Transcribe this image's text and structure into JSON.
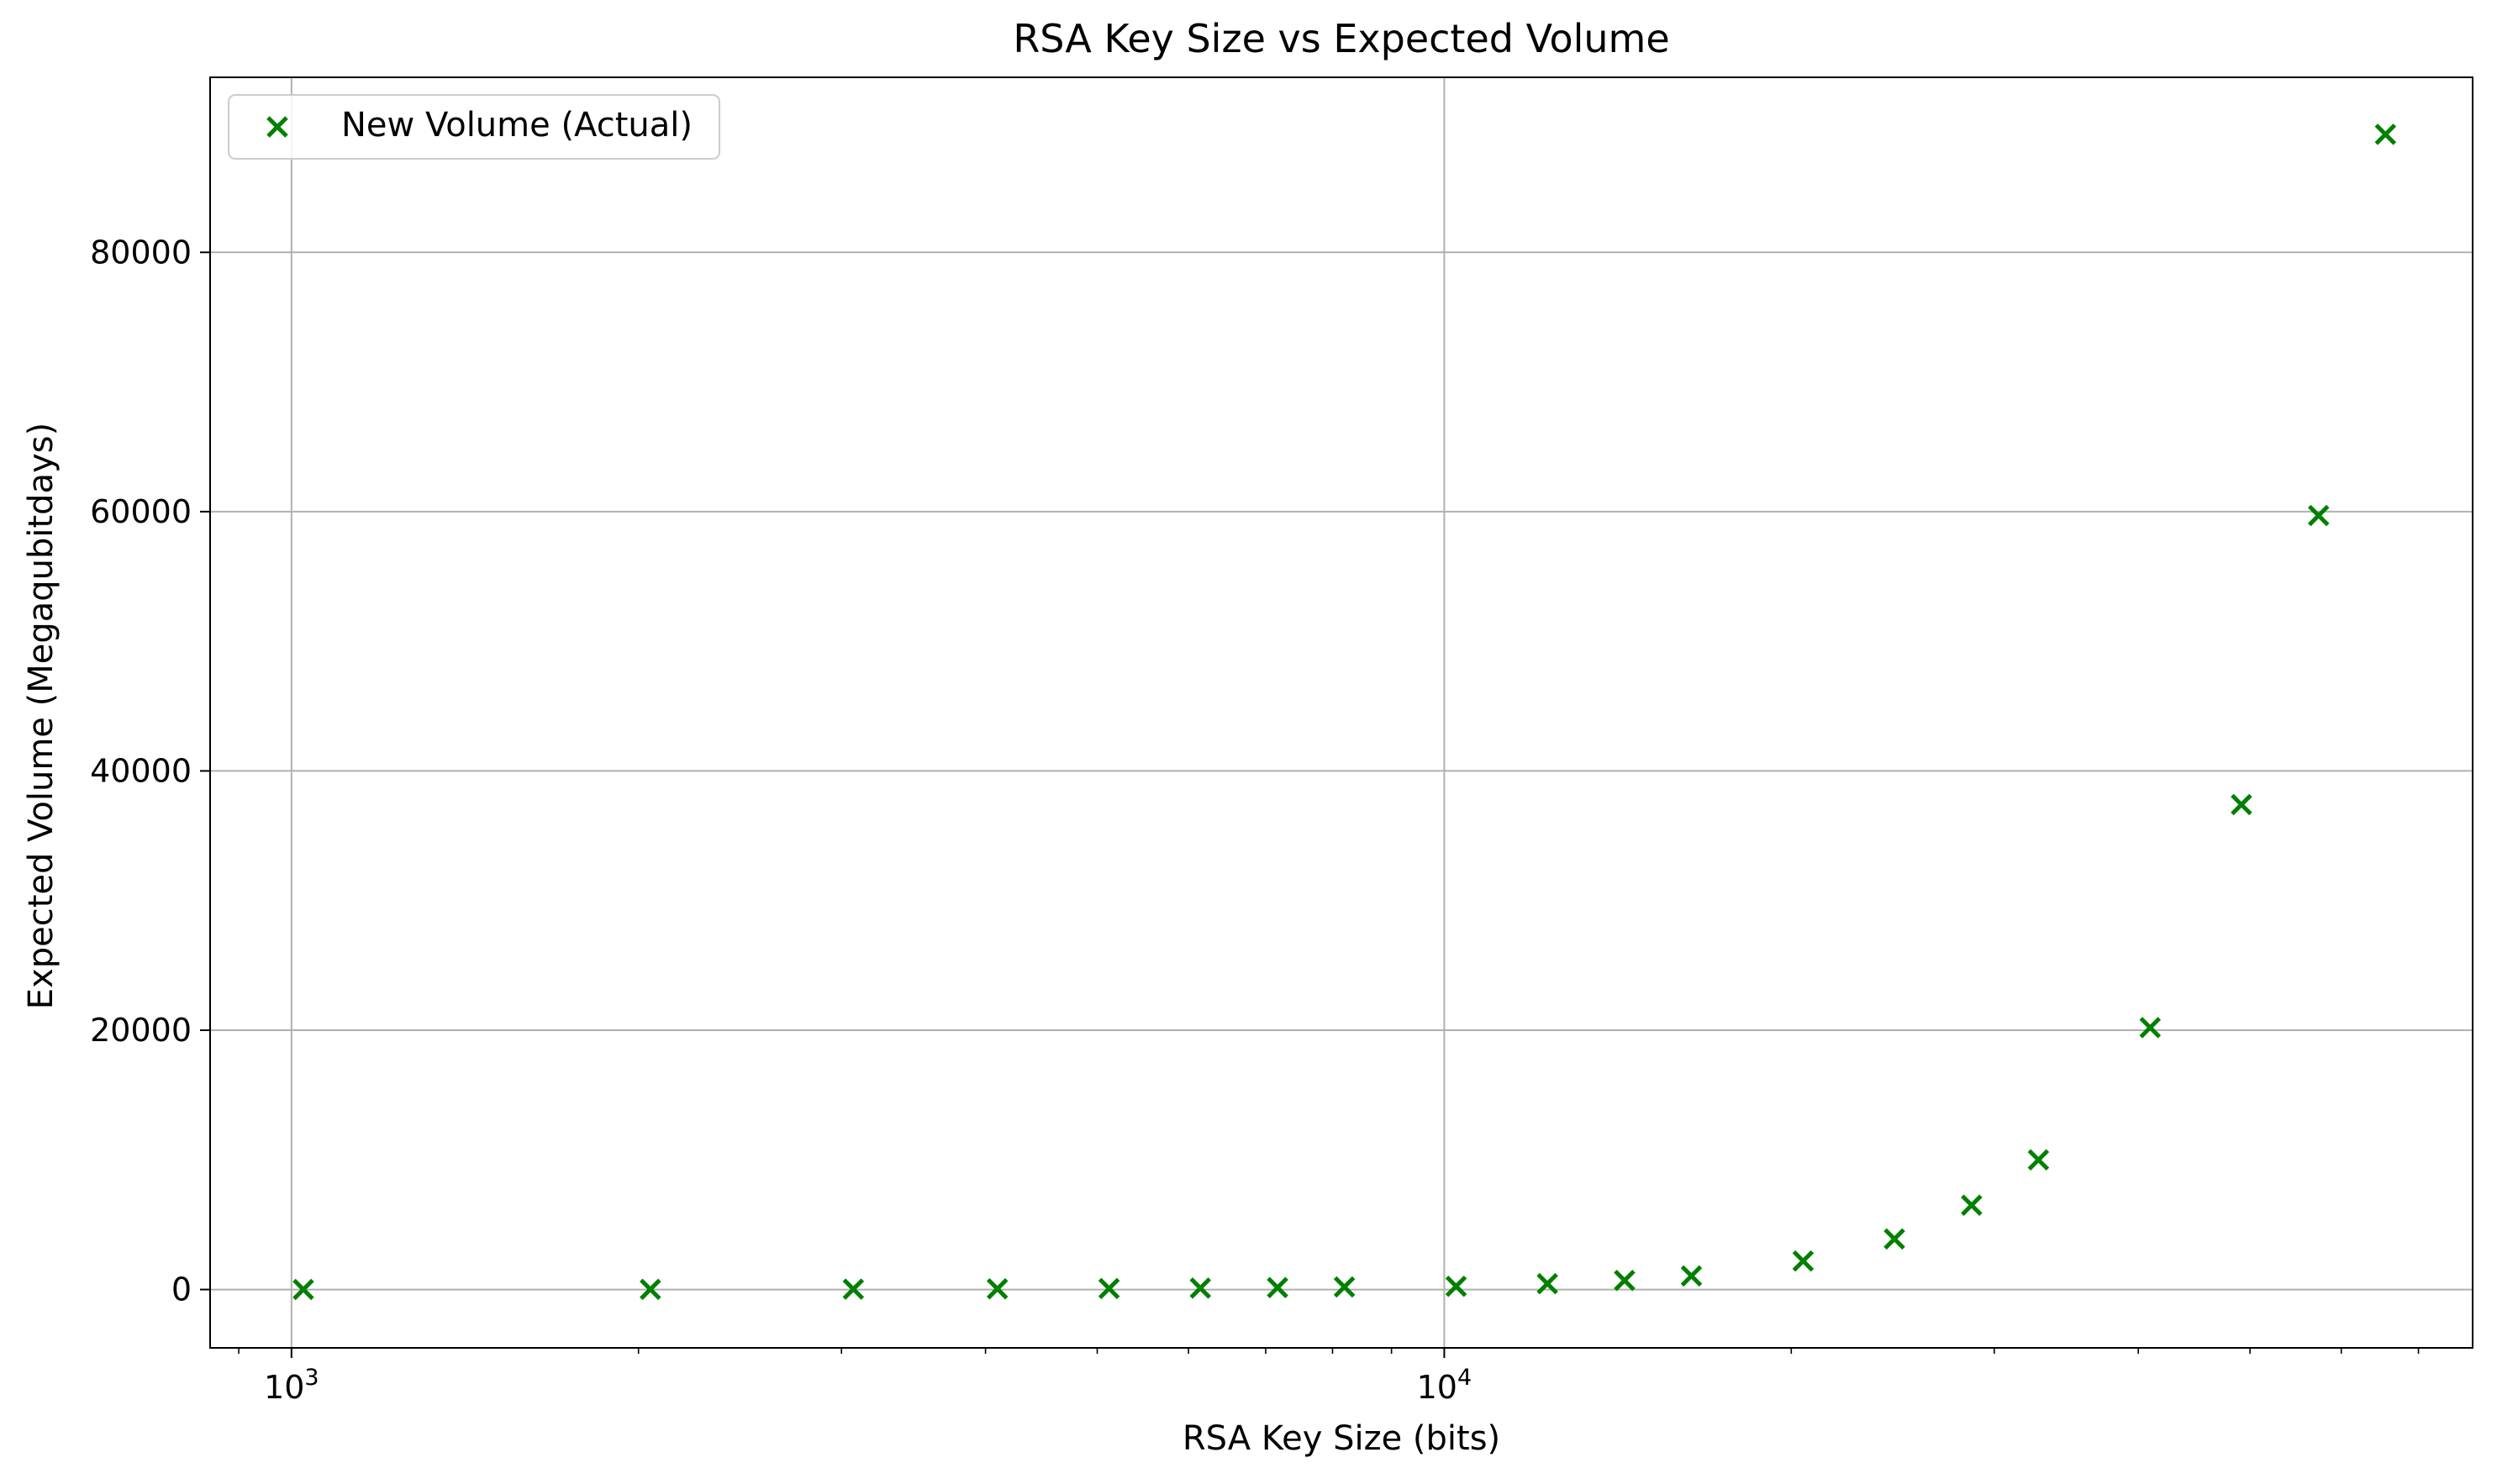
{
  "chart_data": {
    "type": "scatter",
    "title": "RSA Key Size vs Expected Volume",
    "xlabel": "RSA Key Size (bits)",
    "ylabel": "Expected Volume (Megaqubitdays)",
    "x_scale": "log",
    "xlim": [
      850,
      78000
    ],
    "ylim": [
      -4500,
      93500
    ],
    "x_ticks": [
      {
        "value": 1000,
        "base": "10",
        "exp": "3"
      },
      {
        "value": 10000,
        "base": "10",
        "exp": "4"
      }
    ],
    "y_ticks": [
      {
        "value": 0,
        "label": "0"
      },
      {
        "value": 20000,
        "label": "20000"
      },
      {
        "value": 40000,
        "label": "40000"
      },
      {
        "value": 60000,
        "label": "60000"
      },
      {
        "value": 80000,
        "label": "80000"
      }
    ],
    "grid": true,
    "legend": {
      "position": "top-left"
    },
    "series": [
      {
        "name": "New Volume (Actual)",
        "color": "#008000",
        "marker": "x",
        "points": [
          {
            "x": 1024,
            "y": 5
          },
          {
            "x": 2048,
            "y": 15
          },
          {
            "x": 3072,
            "y": 30
          },
          {
            "x": 4096,
            "y": 55
          },
          {
            "x": 5120,
            "y": 80
          },
          {
            "x": 6144,
            "y": 110
          },
          {
            "x": 7168,
            "y": 150
          },
          {
            "x": 8192,
            "y": 200
          },
          {
            "x": 10240,
            "y": 250
          },
          {
            "x": 12288,
            "y": 450
          },
          {
            "x": 14336,
            "y": 700
          },
          {
            "x": 16384,
            "y": 1050
          },
          {
            "x": 20480,
            "y": 2200
          },
          {
            "x": 24576,
            "y": 3900
          },
          {
            "x": 28672,
            "y": 6500
          },
          {
            "x": 32768,
            "y": 10000
          },
          {
            "x": 40960,
            "y": 20200
          },
          {
            "x": 49152,
            "y": 37400
          },
          {
            "x": 57344,
            "y": 59700
          },
          {
            "x": 65536,
            "y": 89100
          }
        ]
      }
    ]
  }
}
